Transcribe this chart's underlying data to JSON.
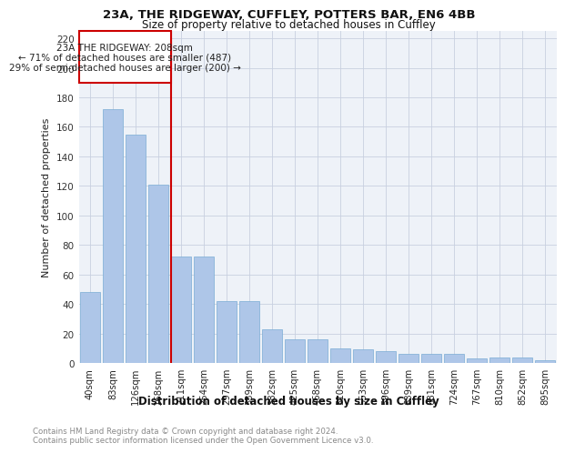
{
  "title1": "23A, THE RIDGEWAY, CUFFLEY, POTTERS BAR, EN6 4BB",
  "title2": "Size of property relative to detached houses in Cuffley",
  "xlabel": "Distribution of detached houses by size in Cuffley",
  "ylabel": "Number of detached properties",
  "categories": [
    "40sqm",
    "83sqm",
    "126sqm",
    "168sqm",
    "211sqm",
    "254sqm",
    "297sqm",
    "339sqm",
    "382sqm",
    "425sqm",
    "468sqm",
    "510sqm",
    "553sqm",
    "596sqm",
    "639sqm",
    "681sqm",
    "724sqm",
    "767sqm",
    "810sqm",
    "852sqm",
    "895sqm"
  ],
  "values": [
    48,
    172,
    155,
    121,
    72,
    72,
    42,
    42,
    23,
    16,
    16,
    10,
    9,
    8,
    6,
    6,
    6,
    3,
    4,
    4,
    2
  ],
  "bar_color": "#aec6e8",
  "bar_edge_color": "#7aadd4",
  "vline_color": "#cc0000",
  "vline_label": "23A THE RIDGEWAY: 208sqm",
  "annotation_line1": "← 71% of detached houses are smaller (487)",
  "annotation_line2": "29% of semi-detached houses are larger (200) →",
  "annotation_box_color": "#cc0000",
  "ylim": [
    0,
    225
  ],
  "yticks": [
    0,
    20,
    40,
    60,
    80,
    100,
    120,
    140,
    160,
    180,
    200,
    220
  ],
  "footnote1": "Contains HM Land Registry data © Crown copyright and database right 2024.",
  "footnote2": "Contains public sector information licensed under the Open Government Licence v3.0.",
  "plot_bg": "#eef2f8"
}
